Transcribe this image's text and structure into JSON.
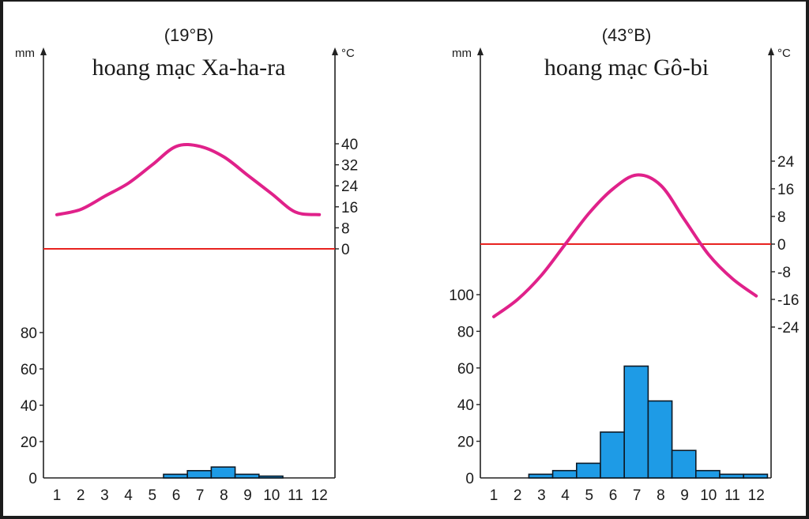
{
  "chart_data": [
    {
      "type": "bar",
      "latitude": "(19°B)",
      "title": "hoang mạc Xa-ha-ra",
      "left_unit": "mm",
      "right_unit": "°C",
      "months": [
        "1",
        "2",
        "3",
        "4",
        "5",
        "6",
        "7",
        "8",
        "9",
        "10",
        "11",
        "12"
      ],
      "precip_ticks": [
        "0",
        "20",
        "40",
        "60",
        "80"
      ],
      "temp_ticks": [
        "0",
        "8",
        "16",
        "24",
        "32",
        "40"
      ],
      "precip_ylim": [
        0,
        80
      ],
      "temp_ylim": [
        0,
        40
      ],
      "precipitation": [
        0,
        0,
        0,
        0,
        0,
        2,
        4,
        6,
        2,
        1,
        0,
        0
      ],
      "temperature": [
        13,
        15,
        20,
        25,
        32,
        39,
        39,
        35,
        28,
        21,
        14,
        13
      ],
      "zero_line_color": "#e8231f",
      "temp_color": "#e0218a",
      "bar_color": "#1e9be6"
    },
    {
      "type": "bar",
      "latitude": "(43°B)",
      "title": "hoang mạc Gô-bi",
      "left_unit": "mm",
      "right_unit": "°C",
      "months": [
        "1",
        "2",
        "3",
        "4",
        "5",
        "6",
        "7",
        "8",
        "9",
        "10",
        "11",
        "12"
      ],
      "precip_ticks": [
        "0",
        "20",
        "40",
        "60",
        "80",
        "100"
      ],
      "temp_ticks": [
        "-24",
        "-16",
        "-8",
        "0",
        "8",
        "16",
        "24"
      ],
      "precip_ylim": [
        0,
        100
      ],
      "temp_ylim": [
        -24,
        24
      ],
      "precipitation": [
        0,
        0,
        2,
        4,
        8,
        25,
        61,
        42,
        15,
        4,
        2,
        2
      ],
      "temperature": [
        -21,
        -16,
        -9,
        0,
        9,
        16,
        20,
        17,
        7,
        -3,
        -10,
        -15
      ],
      "zero_line_color": "#e8231f",
      "temp_color": "#e0218a",
      "bar_color": "#1e9be6"
    }
  ]
}
